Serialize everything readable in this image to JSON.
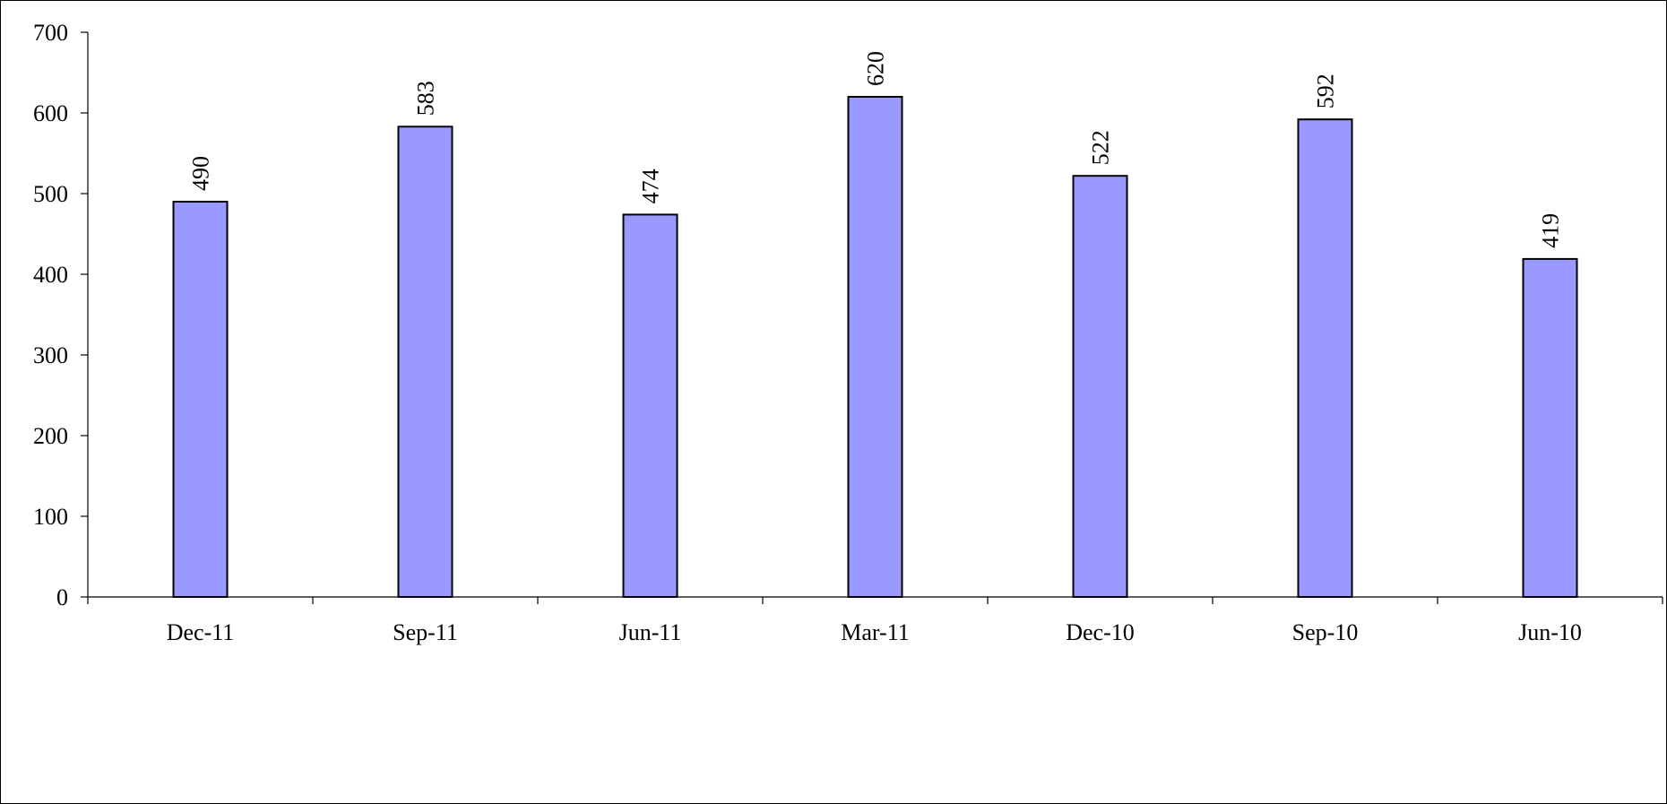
{
  "chart_data": {
    "type": "bar",
    "title": "",
    "xlabel": "",
    "ylabel": "",
    "categories": [
      "Dec-11",
      "Sep-11",
      "Jun-11",
      "Mar-11",
      "Dec-10",
      "Sep-10",
      "Jun-10"
    ],
    "values": [
      490,
      583,
      474,
      620,
      522,
      592,
      419
    ],
    "data_labels": [
      "490",
      "583",
      "474",
      "620",
      "522",
      "592",
      "419"
    ],
    "ylim": [
      0,
      700
    ],
    "yticks": [
      0,
      100,
      200,
      300,
      400,
      500,
      600,
      700
    ],
    "ytick_labels": [
      "0",
      "100",
      "200",
      "300",
      "400",
      "500",
      "600",
      "700"
    ],
    "grid": false,
    "legend": "none",
    "colors": {
      "bar_fill": "#9999FF",
      "bar_stroke": "#000000",
      "axis": "#000000"
    }
  }
}
